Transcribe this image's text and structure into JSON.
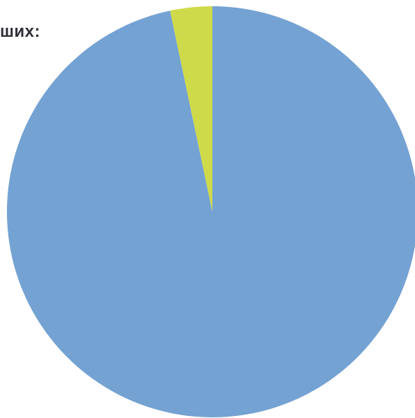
{
  "heading_fragment": "ших:",
  "chart_data": {
    "type": "pie",
    "title": "",
    "slices": [
      {
        "value": 96.7,
        "color": "#74a2d3"
      },
      {
        "value": 3.3,
        "color": "#cfda4b"
      }
    ],
    "start_angle_deg": 0,
    "direction": "clockwise",
    "legend": "none"
  }
}
